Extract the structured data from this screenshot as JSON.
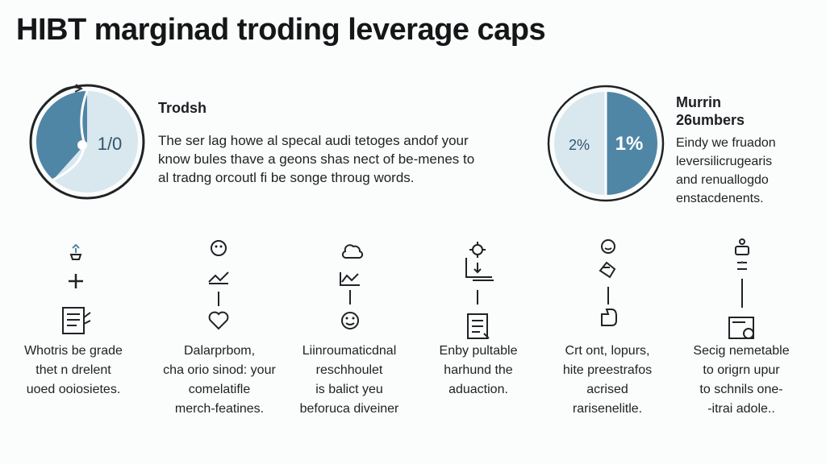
{
  "title": "HIBT marginad troding leverage caps",
  "left_panel": {
    "heading": "Trodsh",
    "pie_label": "1/0",
    "lines": [
      "The ser lag howe al specal audi tetoges andof your",
      "know bules thave a geons shas nect of be-menes to",
      "al tradng orcoutl fi be songe throug words."
    ]
  },
  "right_panel": {
    "pie_left_label": "2%",
    "pie_right_label": "1%",
    "heading_lines": [
      "Murrin",
      "26umbers"
    ],
    "lines": [
      "Eindy we fruadon",
      "leversilicrugearis",
      "and renuallogdo",
      "enstacdenents."
    ]
  },
  "steps": [
    {
      "icons": [
        "tray-icon",
        "plus-icon",
        "document-icon"
      ],
      "caption": [
        "Whotris be grade",
        "thet n drelent",
        "uoed ooiosietes."
      ]
    },
    {
      "icons": [
        "face-icon",
        "chart-arrow-icon",
        "heart-icon"
      ],
      "caption": [
        "Dalarprbom,",
        "cha orio sinod: your",
        "comelatifle",
        "merch-featines."
      ]
    },
    {
      "icons": [
        "cloud-icon",
        "line-chart-icon",
        "smile-icon"
      ],
      "caption": [
        "Liinroumaticdnal",
        "reschhoulet",
        "is balict yeu",
        "beforuca diveiner"
      ]
    },
    {
      "icons": [
        "gear-icon",
        "bar-chart-icon",
        "clipboard-icon"
      ],
      "caption": [
        "Enby pultable",
        "harhund the",
        "aduaction."
      ]
    },
    {
      "icons": [
        "smile-icon",
        "hand-icon",
        "thumb-icon"
      ],
      "caption": [
        "Crt ont, lopurs,",
        "hite preestrafos",
        "acrised",
        "rarisenelitle."
      ]
    },
    {
      "icons": [
        "person-icon",
        "sign-icon",
        "badge-icon"
      ],
      "caption": [
        "Secig nemetable",
        "to origrn upur",
        "to schnils one-",
        "-itrai adole.."
      ]
    }
  ]
}
